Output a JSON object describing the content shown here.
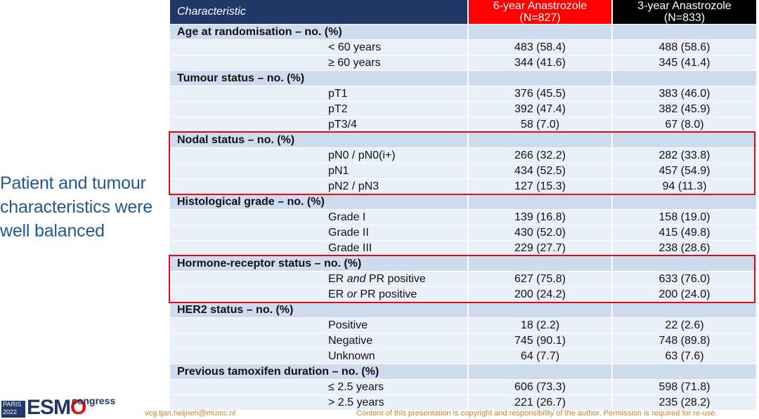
{
  "side_text": [
    "Patient and tumour",
    "characteristics were",
    "well balanced"
  ],
  "table": {
    "header": {
      "characteristic": "Characteristic",
      "col6_line1": "6-year Anastrozole",
      "col6_line2": "(N=827)",
      "col3_line1": "3-year Anastrozole",
      "col3_line2": "(N=833)"
    },
    "sections": [
      {
        "title": "Age at randomisation – no. (%)",
        "rows": [
          {
            "label": "< 60 years",
            "a6": "483 (58.4)",
            "a3": "488 (58.6)"
          },
          {
            "label": "≥ 60 years",
            "a6": "344 (41.6)",
            "a3": "345 (41.4)"
          }
        ]
      },
      {
        "title": "Tumour status – no. (%)",
        "rows": [
          {
            "label": "pT1",
            "a6": "376 (45.5)",
            "a3": "383 (46.0)"
          },
          {
            "label": "pT2",
            "a6": "392 (47.4)",
            "a3": "382 (45.9)"
          },
          {
            "label": "pT3/4",
            "a6": "58 (7.0)",
            "a3": "67 (8.0)"
          }
        ]
      },
      {
        "title": "Nodal status – no. (%)",
        "rows": [
          {
            "label": "pN0 / pN0(i+)",
            "a6": "266 (32.2)",
            "a3": "282 (33.8)"
          },
          {
            "label": "pN1",
            "a6": "434 (52.5)",
            "a3": "457 (54.9)"
          },
          {
            "label": "pN2 / pN3",
            "a6": "127 (15.3)",
            "a3": "94 (11.3)"
          }
        ]
      },
      {
        "title": "Histological grade – no. (%)",
        "rows": [
          {
            "label": "Grade I",
            "a6": "139 (16.8)",
            "a3": "158 (19.0)"
          },
          {
            "label": "Grade II",
            "a6": "430 (52.0)",
            "a3": "415 (49.8)"
          },
          {
            "label": "Grade III",
            "a6": "229 (27.7)",
            "a3": "238 (28.6)"
          }
        ]
      },
      {
        "title": "Hormone-receptor status – no. (%)",
        "rows": [
          {
            "label_pre": "ER ",
            "label_em": "and",
            "label_post": " PR positive",
            "a6": "627 (75.8)",
            "a3": "633 (76.0)"
          },
          {
            "label_pre": "ER ",
            "label_em": "or",
            "label_post": " PR positive",
            "a6": "200 (24.2)",
            "a3": "200 (24.0)"
          }
        ]
      },
      {
        "title": "HER2 status – no. (%)",
        "rows": [
          {
            "label": "Positive",
            "a6": "18 (2.2)",
            "a3": "22 (2.6)"
          },
          {
            "label": "Negative",
            "a6": "745 (90.1)",
            "a3": "748 (89.8)"
          },
          {
            "label": "Unknown",
            "a6": "64 (7.7)",
            "a3": "63 (7.6)"
          }
        ]
      },
      {
        "title": "Previous tamoxifen duration – no. (%)",
        "rows": [
          {
            "label": "≤ 2.5 years",
            "a6": "606 (73.3)",
            "a3": "598 (71.8)"
          },
          {
            "label": "> 2.5 years",
            "a6": "221 (26.7)",
            "a3": "235 (28.2)"
          }
        ]
      }
    ]
  },
  "highlight_color": "#e30a17",
  "logo": {
    "city": "PARIS",
    "year": "2022",
    "brand": "ESM",
    "brand_o": "O",
    "suffix": "congress"
  },
  "footer": {
    "email": "vcg.tjan.heijnen@mumc.nl",
    "copyright": "Content of this presentation is copyright and responsibility of the author. Permission is required for re-use."
  }
}
